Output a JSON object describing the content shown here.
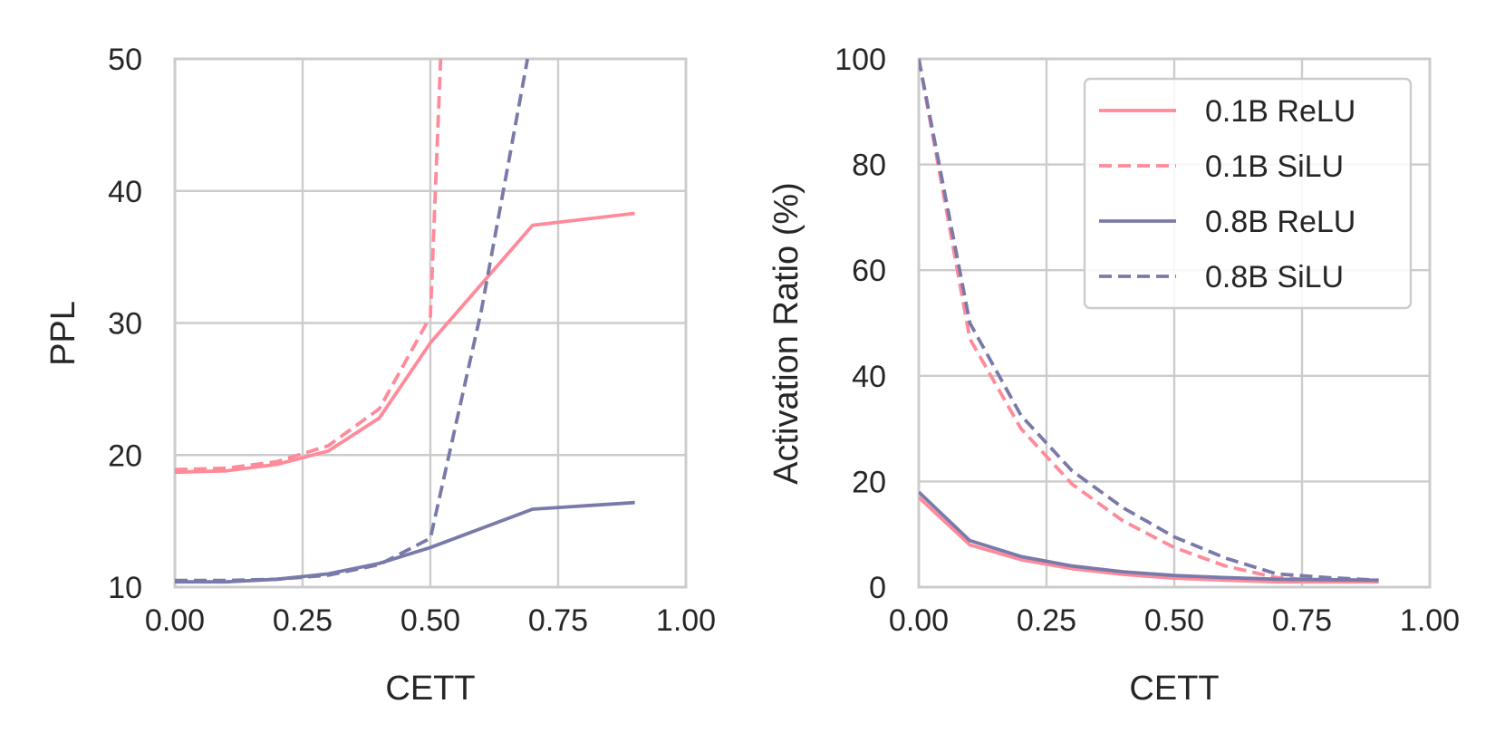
{
  "chart_data": [
    {
      "type": "line",
      "title": "",
      "xlabel": "CETT",
      "ylabel": "PPL",
      "xlim": [
        0,
        1
      ],
      "ylim": [
        10,
        50
      ],
      "xticks": [
        "0.00",
        "0.25",
        "0.50",
        "0.75",
        "1.00"
      ],
      "xtick_values": [
        0,
        0.25,
        0.5,
        0.75,
        1.0
      ],
      "yticks": [
        "10",
        "20",
        "30",
        "40",
        "50"
      ],
      "ytick_values": [
        10,
        20,
        30,
        40,
        50
      ],
      "grid": true,
      "series": [
        {
          "name": "0.1B ReLU",
          "style": "solid",
          "color": "#FF8A9A",
          "points": [
            [
              0.0,
              18.7
            ],
            [
              0.1,
              18.8
            ],
            [
              0.2,
              19.3
            ],
            [
              0.3,
              20.3
            ],
            [
              0.4,
              22.8
            ],
            [
              0.5,
              28.5
            ],
            [
              0.7,
              37.4
            ],
            [
              0.9,
              38.3
            ]
          ]
        },
        {
          "name": "0.1B SiLU",
          "style": "dashed",
          "color": "#FF8A9A",
          "points": [
            [
              0.0,
              18.9
            ],
            [
              0.1,
              19.0
            ],
            [
              0.2,
              19.5
            ],
            [
              0.3,
              20.7
            ],
            [
              0.4,
              23.5
            ],
            [
              0.5,
              30.5
            ],
            [
              0.52,
              50.0
            ]
          ]
        },
        {
          "name": "0.8B ReLU",
          "style": "solid",
          "color": "#7A7AAA",
          "points": [
            [
              0.0,
              10.4
            ],
            [
              0.1,
              10.4
            ],
            [
              0.2,
              10.6
            ],
            [
              0.3,
              11.0
            ],
            [
              0.4,
              11.8
            ],
            [
              0.5,
              13.0
            ],
            [
              0.7,
              15.9
            ],
            [
              0.9,
              16.4
            ]
          ]
        },
        {
          "name": "0.8B SiLU",
          "style": "dashed",
          "color": "#7A7AAA",
          "points": [
            [
              0.0,
              10.5
            ],
            [
              0.1,
              10.5
            ],
            [
              0.2,
              10.6
            ],
            [
              0.3,
              10.9
            ],
            [
              0.4,
              11.7
            ],
            [
              0.5,
              13.7
            ],
            [
              0.6,
              31.0
            ],
            [
              0.69,
              50.0
            ]
          ]
        }
      ]
    },
    {
      "type": "line",
      "title": "",
      "xlabel": "CETT",
      "ylabel": "Activation Ratio (%)",
      "xlim": [
        0,
        1
      ],
      "ylim": [
        0,
        100
      ],
      "xticks": [
        "0.00",
        "0.25",
        "0.50",
        "0.75",
        "1.00"
      ],
      "xtick_values": [
        0,
        0.25,
        0.5,
        0.75,
        1.0
      ],
      "yticks": [
        "0",
        "20",
        "40",
        "60",
        "80",
        "100"
      ],
      "ytick_values": [
        0,
        20,
        40,
        60,
        80,
        100
      ],
      "grid": true,
      "legend_position": "top-right",
      "series": [
        {
          "name": "0.1B ReLU",
          "style": "solid",
          "color": "#FF8A9A",
          "points": [
            [
              0.0,
              17.0
            ],
            [
              0.1,
              8.0
            ],
            [
              0.2,
              5.2
            ],
            [
              0.3,
              3.5
            ],
            [
              0.4,
              2.4
            ],
            [
              0.5,
              1.7
            ],
            [
              0.6,
              1.3
            ],
            [
              0.7,
              1.0
            ],
            [
              0.8,
              1.0
            ],
            [
              0.9,
              1.0
            ]
          ]
        },
        {
          "name": "0.1B SiLU",
          "style": "dashed",
          "color": "#FF8A9A",
          "points": [
            [
              0.0,
              100.0
            ],
            [
              0.1,
              47.0
            ],
            [
              0.2,
              30.0
            ],
            [
              0.3,
              19.5
            ],
            [
              0.4,
              12.5
            ],
            [
              0.5,
              7.5
            ],
            [
              0.6,
              4.0
            ],
            [
              0.7,
              1.8
            ],
            [
              0.8,
              1.2
            ],
            [
              0.9,
              1.0
            ]
          ]
        },
        {
          "name": "0.8B ReLU",
          "style": "solid",
          "color": "#7A7AAA",
          "points": [
            [
              0.0,
              18.0
            ],
            [
              0.1,
              8.8
            ],
            [
              0.2,
              5.8
            ],
            [
              0.3,
              4.0
            ],
            [
              0.4,
              2.9
            ],
            [
              0.5,
              2.2
            ],
            [
              0.6,
              1.8
            ],
            [
              0.7,
              1.5
            ],
            [
              0.8,
              1.4
            ],
            [
              0.9,
              1.3
            ]
          ]
        },
        {
          "name": "0.8B SiLU",
          "style": "dashed",
          "color": "#7A7AAA",
          "points": [
            [
              0.0,
              100.0
            ],
            [
              0.1,
              50.0
            ],
            [
              0.2,
              32.5
            ],
            [
              0.3,
              22.0
            ],
            [
              0.4,
              15.0
            ],
            [
              0.5,
              9.5
            ],
            [
              0.6,
              5.5
            ],
            [
              0.7,
              2.5
            ],
            [
              0.8,
              1.8
            ],
            [
              0.9,
              1.3
            ]
          ]
        }
      ]
    }
  ]
}
